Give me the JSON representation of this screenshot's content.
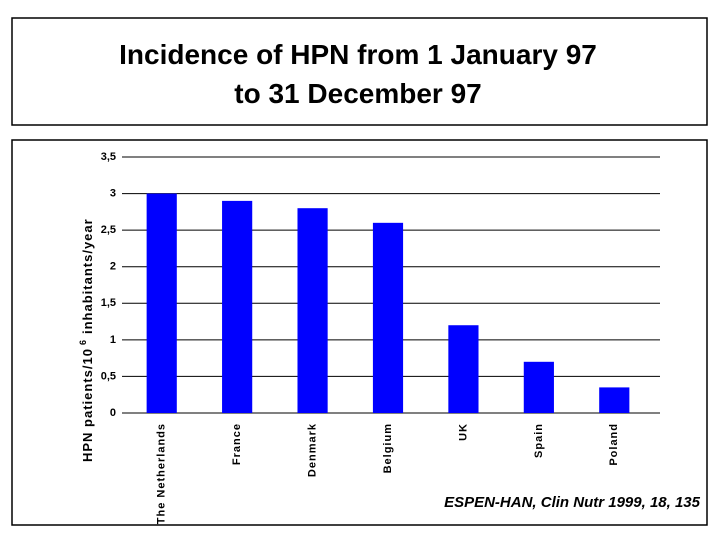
{
  "chart_data": {
    "type": "bar",
    "title_lines": [
      "Incidence of HPN from 1 January 97",
      "to 31 December 97"
    ],
    "ylabel": "HPN patients/10",
    "ylabel_sup": "6",
    "ylabel_end": "inhabitants/year",
    "categories": [
      "The Netherlands",
      "France",
      "Denmark",
      "Belgium",
      "UK",
      "Spain",
      "Poland"
    ],
    "values": [
      3.0,
      2.9,
      2.8,
      2.6,
      1.2,
      0.7,
      0.35
    ],
    "color": "#0000ff",
    "ylim": [
      0,
      3.5
    ],
    "yticks": [
      0,
      {
        "value": 0.5,
        "label": "0,5"
      },
      1,
      {
        "value": 1.5,
        "label": "1,5"
      },
      2,
      {
        "value": 2.5,
        "label": "2,5"
      },
      3,
      {
        "value": 3.5,
        "label": "3,5"
      }
    ],
    "grid": true,
    "source": "ESPEN-HAN, Clin Nutr 1999, 18, 135"
  }
}
